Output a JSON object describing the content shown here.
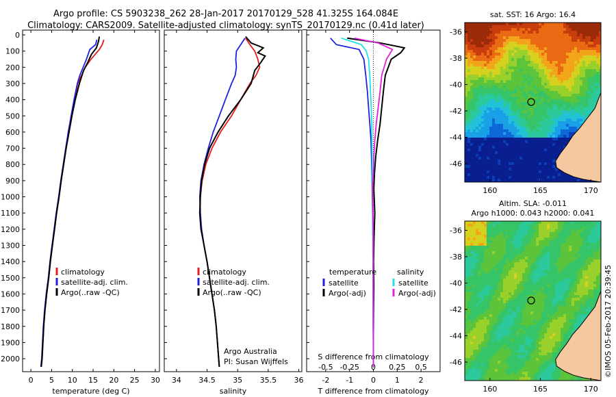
{
  "header": {
    "title_line1": "Argo profile: CS 5903238_262 28-Jan-2017 20170129_528 41.325S 164.084E",
    "title_line2": "Climatology: CARS2009. Satellite-adjusted climatology: synTS_20170129.nc (0.41d later)"
  },
  "colors": {
    "climatology": "#e41a1c",
    "satellite": "#1f1fe0",
    "argo": "#000000",
    "salinity_satellite": "#22e0e8",
    "salinity_argo": "#e020e0"
  },
  "credits": {
    "line1": "Argo Australia",
    "line2": "PI: Susan Wijffels",
    "timestamp": "©IMOS 05-Feb-2017 20:39:45"
  },
  "chart_data": [
    {
      "type": "line",
      "xlabel": "temperature (deg C)",
      "ylabel": "",
      "xlim": [
        -2,
        31
      ],
      "ylim": [
        2080,
        0
      ],
      "xticks": [
        0,
        5,
        10,
        15,
        20,
        25,
        30
      ],
      "yticks": [
        0,
        100,
        200,
        300,
        400,
        500,
        600,
        700,
        800,
        900,
        1000,
        1100,
        1200,
        1300,
        1400,
        1500,
        1600,
        1700,
        1800,
        1900,
        2000
      ],
      "legend": [
        "climatology",
        "satellite-adj. clim.",
        "Argo(..raw -QC)"
      ],
      "legend_placement": "lower-center",
      "series": [
        {
          "name": "climatology",
          "color": "#e41a1c",
          "x": [
            17.6,
            17.2,
            16.5,
            14.5,
            13.1,
            12.2,
            11.3,
            10.5,
            9.8,
            9.1,
            8.5,
            7.9,
            7.3,
            6.8,
            6.2,
            5.7,
            5.2,
            4.7,
            4.3,
            3.8,
            3.4,
            3.1,
            2.9,
            2.7,
            2.5
          ],
          "y": [
            30,
            60,
            90,
            150,
            200,
            250,
            300,
            400,
            500,
            600,
            700,
            800,
            900,
            1000,
            1100,
            1200,
            1300,
            1400,
            1500,
            1600,
            1700,
            1800,
            1900,
            2000,
            2050
          ]
        },
        {
          "name": "satellite-adj. clim.",
          "color": "#1f1fe0",
          "x": [
            15.9,
            15.6,
            14.2,
            13.4,
            12.6,
            11.8,
            11.2,
            10.4,
            9.7,
            9.0,
            8.4,
            7.8,
            7.2,
            6.7,
            6.1,
            5.6,
            5.1,
            4.6,
            4.2,
            3.7,
            3.3,
            3.0,
            2.8,
            2.6,
            2.4
          ],
          "y": [
            30,
            60,
            90,
            150,
            200,
            250,
            300,
            400,
            500,
            600,
            700,
            800,
            900,
            1000,
            1100,
            1200,
            1300,
            1400,
            1500,
            1600,
            1700,
            1800,
            1900,
            2000,
            2050
          ]
        },
        {
          "name": "Argo(..raw -QC)",
          "color": "#000000",
          "x": [
            16.5,
            16.3,
            15.8,
            14.6,
            13.7,
            12.7,
            11.7,
            10.7,
            9.9,
            9.2,
            8.5,
            7.9,
            7.3,
            6.8,
            6.2,
            5.7,
            5.2,
            4.7,
            4.3,
            3.8,
            3.4,
            3.1,
            2.9,
            2.7,
            2.5
          ],
          "y": [
            10,
            40,
            80,
            120,
            170,
            220,
            300,
            400,
            500,
            600,
            700,
            800,
            900,
            1000,
            1100,
            1200,
            1300,
            1400,
            1500,
            1600,
            1700,
            1800,
            1900,
            2000,
            2050
          ]
        }
      ]
    },
    {
      "type": "line",
      "xlabel": "salinity",
      "ylabel": "",
      "xlim": [
        33.8,
        36.05
      ],
      "ylim": [
        2080,
        0
      ],
      "xticks": [
        34,
        34.5,
        35,
        35.5,
        36
      ],
      "legend": [
        "climatology",
        "satellite-adj. clim.",
        "Argo(..raw -QC)"
      ],
      "legend_placement": "lower-center",
      "series": [
        {
          "name": "climatology",
          "color": "#e41a1c",
          "x": [
            35.13,
            35.2,
            35.28,
            35.33,
            35.36,
            35.3,
            35.2,
            35.05,
            34.9,
            34.72,
            34.58,
            34.48,
            34.42,
            34.39,
            34.39,
            34.41,
            34.45,
            34.5,
            34.54,
            34.58,
            34.62,
            34.65,
            34.67,
            34.69,
            34.7
          ],
          "y": [
            20,
            60,
            100,
            150,
            200,
            250,
            300,
            400,
            500,
            600,
            700,
            800,
            900,
            1000,
            1100,
            1200,
            1300,
            1400,
            1500,
            1600,
            1700,
            1800,
            1900,
            2000,
            2050
          ]
        },
        {
          "name": "satellite-adj. clim.",
          "color": "#1f1fe0",
          "x": [
            35.12,
            35.05,
            34.98,
            34.97,
            34.98,
            34.96,
            34.9,
            34.8,
            34.7,
            34.6,
            34.52,
            34.45,
            34.4,
            34.38,
            34.39,
            34.41,
            34.45,
            34.5,
            34.54,
            34.58,
            34.62,
            34.65,
            34.67,
            34.69,
            34.7
          ],
          "y": [
            20,
            60,
            100,
            150,
            200,
            250,
            300,
            400,
            500,
            600,
            700,
            800,
            900,
            1000,
            1100,
            1200,
            1300,
            1400,
            1500,
            1600,
            1700,
            1800,
            1900,
            2000,
            2050
          ]
        },
        {
          "name": "Argo(..raw -QC)",
          "color": "#000000",
          "x": [
            35.13,
            35.22,
            35.42,
            35.33,
            35.45,
            35.38,
            35.28,
            35.22,
            35.05,
            34.85,
            34.68,
            34.54,
            34.46,
            34.41,
            34.39,
            34.38,
            34.4,
            34.45,
            34.5,
            34.54,
            34.58,
            34.62,
            34.65,
            34.67,
            34.69,
            34.7
          ],
          "y": [
            10,
            50,
            80,
            110,
            130,
            170,
            220,
            300,
            400,
            500,
            600,
            700,
            800,
            900,
            1000,
            1100,
            1200,
            1300,
            1400,
            1500,
            1600,
            1700,
            1800,
            1900,
            2000,
            2050
          ]
        }
      ]
    },
    {
      "type": "line",
      "xlabel": "T difference from climatology",
      "xlabel_secondary": "S difference from climatology",
      "ylabel": "",
      "xlim": [
        -2.8,
        2.8
      ],
      "ylim": [
        2080,
        0
      ],
      "xticks": [
        -2,
        -1,
        0,
        1,
        2
      ],
      "xticks_secondary": [
        "-0.5",
        "-0.25",
        "0",
        "0.25",
        "0.5"
      ],
      "legend": {
        "temperature": [
          "satellite",
          "Argo(-adj)"
        ],
        "salinity": [
          "satellite",
          "Argo(-adj)"
        ],
        "group_labels": [
          "temperature",
          "salinity"
        ]
      },
      "legend_placement": "lower-center",
      "series": [
        {
          "name": "satellite",
          "group": "temperature",
          "color": "#1f1fe0",
          "x": [
            -1.8,
            -1.55,
            -0.6,
            -0.4,
            -0.32,
            -0.25,
            -0.2,
            -0.15,
            -0.1,
            -0.08,
            -0.06,
            -0.05,
            -0.04,
            -0.03,
            -0.02,
            -0.02,
            -0.01,
            -0.01,
            -0.01,
            0,
            0
          ],
          "y": [
            20,
            60,
            90,
            150,
            250,
            350,
            450,
            550,
            650,
            750,
            850,
            950,
            1050,
            1150,
            1250,
            1350,
            1500,
            1650,
            1800,
            1950,
            2050
          ]
        },
        {
          "name": "Argo(-adj)",
          "group": "temperature",
          "color": "#000000",
          "x": [
            -1.1,
            0.3,
            1.3,
            1.15,
            0.75,
            0.5,
            0.42,
            0.35,
            0.28,
            0.18,
            0.1,
            0.05,
            0.02,
            0.06,
            0.03,
            0.01,
            0.02,
            0.01,
            0,
            0
          ],
          "y": [
            20,
            50,
            80,
            110,
            150,
            250,
            350,
            450,
            550,
            650,
            750,
            850,
            950,
            1100,
            1250,
            1400,
            1550,
            1700,
            1850,
            2050
          ]
        },
        {
          "name": "satellite",
          "group": "salinity",
          "color": "#22e0e8",
          "x": [
            -1.35,
            -0.5,
            -0.3,
            -0.2,
            -0.15,
            -0.12,
            -0.09,
            -0.07,
            -0.06,
            -0.05,
            -0.04,
            -0.03,
            -0.02,
            -0.01,
            0
          ],
          "y": [
            20,
            60,
            100,
            150,
            250,
            350,
            450,
            550,
            650,
            750,
            900,
            1100,
            1300,
            1600,
            2050
          ]
        },
        {
          "name": "Argo(-adj)",
          "group": "salinity",
          "color": "#e020e0",
          "x": [
            -0.8,
            0.2,
            0.8,
            0.55,
            0.35,
            0.28,
            0.2,
            0.12,
            0.06,
            0.02,
            0,
            -0.04,
            -0.02,
            -0.01,
            0
          ],
          "y": [
            20,
            50,
            90,
            150,
            250,
            350,
            450,
            550,
            650,
            750,
            850,
            950,
            1050,
            1200,
            2050
          ]
        }
      ]
    },
    {
      "type": "heatmap",
      "title": "sat. SST: 16 Argo: 16.4",
      "xlim": [
        157.5,
        171
      ],
      "ylim": [
        -47.4,
        -35.3
      ],
      "xticks": [
        160,
        165,
        170
      ],
      "yticks": [
        -36,
        -38,
        -40,
        -42,
        -44,
        -46
      ],
      "marker": {
        "lon": 164.084,
        "lat": -41.325
      }
    },
    {
      "type": "heatmap",
      "title": "Altim. SLA: -0.011",
      "subtitle": "Argo h1000: 0.043 h2000: 0.041",
      "xlim": [
        157.5,
        171
      ],
      "ylim": [
        -47.4,
        -35.3
      ],
      "xticks": [
        160,
        165,
        170
      ],
      "yticks": [
        -36,
        -38,
        -40,
        -42,
        -44,
        -46
      ],
      "marker": {
        "lon": 164.084,
        "lat": -41.325
      }
    }
  ]
}
